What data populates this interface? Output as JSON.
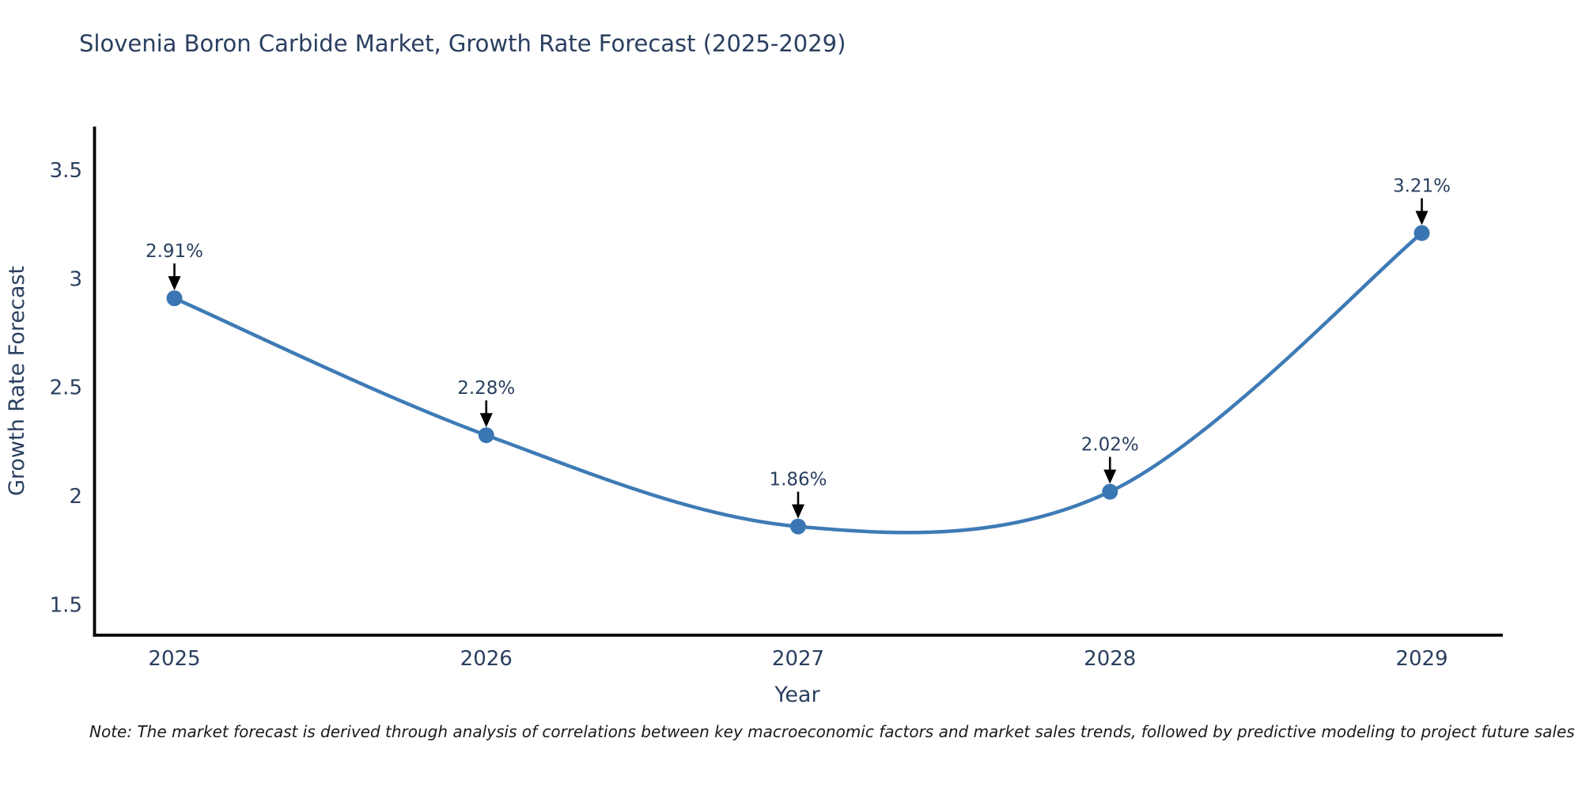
{
  "title": "Slovenia Boron Carbide Market, Growth Rate Forecast (2025-2029)",
  "note": "Note: The market forecast is derived through analysis of correlations between key macroeconomic factors and market sales trends, followed by predictive modeling to project future sales",
  "chart_data": {
    "type": "line",
    "title": "Slovenia Boron Carbide Market, Growth Rate Forecast (2025-2029)",
    "xlabel": "Year",
    "ylabel": "Growth Rate Forecast",
    "x": [
      2025,
      2026,
      2027,
      2028,
      2029
    ],
    "values": [
      2.91,
      2.28,
      1.86,
      2.02,
      3.21
    ],
    "point_labels": [
      "2.91%",
      "2.28%",
      "1.86%",
      "2.02%",
      "3.21%"
    ],
    "xticks": [
      2025,
      2026,
      2027,
      2028,
      2029
    ],
    "yticks": [
      1.5,
      2,
      2.5,
      3,
      3.5
    ],
    "xlim": [
      2024.74,
      2029.26
    ],
    "ylim": [
      1.36,
      3.7
    ],
    "line_shape": "spline",
    "grid": false,
    "legend": "none",
    "colors": {
      "line": "#3e7bb6",
      "marker": "#3a76b2",
      "axis_line": "#000000",
      "tick_text": "#2a3f5f",
      "axis_title_text": "#2a3f5f",
      "annotation_text": "#2a3f5f",
      "annotation_arrow": "#000000",
      "title_text": "#2a3f5f",
      "note_text": "#1a1a1a",
      "background": "#ffffff"
    }
  }
}
